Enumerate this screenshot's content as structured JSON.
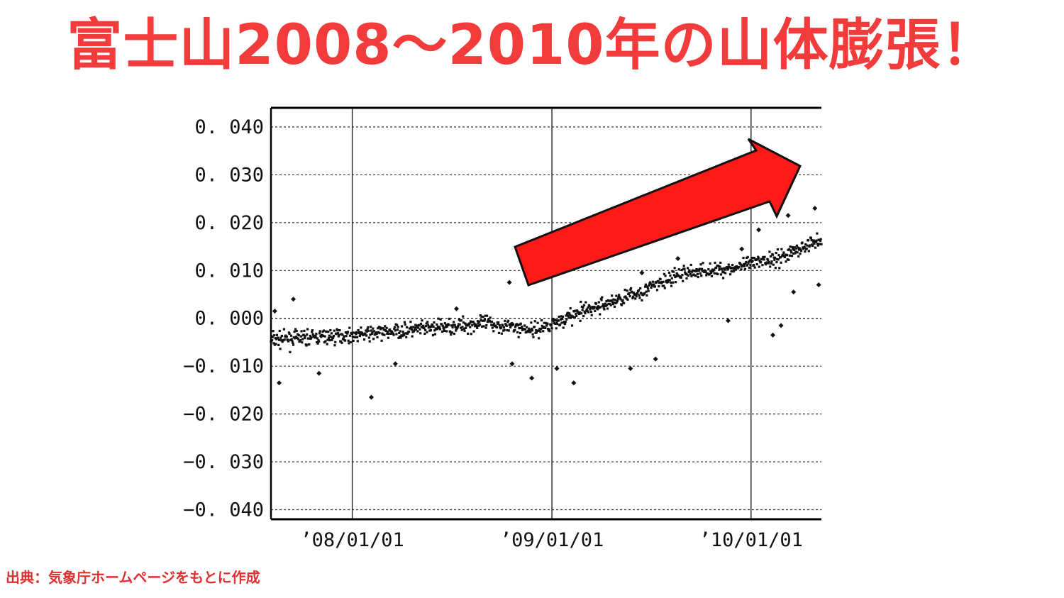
{
  "title": "富士山2008～2010年の山体膨張！",
  "source": "出典：気象庁ホームページをもとに作成",
  "colors": {
    "title": "#f23b3b",
    "arrow_fill": "#ff1a1a",
    "arrow_stroke": "#111111",
    "points": "#111111"
  },
  "chart_data": {
    "type": "scatter",
    "title": "",
    "xlabel": "",
    "ylabel": "",
    "xlim": [
      "2007-08-05",
      "2010-05-10"
    ],
    "ylim": [
      -0.042,
      0.044
    ],
    "y_ticks": [
      {
        "value": 0.04,
        "label": "0. 040"
      },
      {
        "value": 0.03,
        "label": "0. 030"
      },
      {
        "value": 0.02,
        "label": "0. 020"
      },
      {
        "value": 0.01,
        "label": "0. 010"
      },
      {
        "value": 0.0,
        "label": "0. 000"
      },
      {
        "value": -0.01,
        "label": "−0. 010"
      },
      {
        "value": -0.02,
        "label": "−0. 020"
      },
      {
        "value": -0.03,
        "label": "−0. 030"
      },
      {
        "value": -0.04,
        "label": "−0. 040"
      }
    ],
    "x_ticks": [
      {
        "value": "2008-01-01",
        "label": "’08/01/01"
      },
      {
        "value": "2009-01-01",
        "label": "’09/01/01"
      },
      {
        "value": "2010-01-01",
        "label": "’10/01/01"
      }
    ],
    "grid": true,
    "trend": [
      {
        "x": "2007-08-05",
        "y": -0.0045
      },
      {
        "x": "2008-01-01",
        "y": -0.0035
      },
      {
        "x": "2008-06-01",
        "y": -0.002
      },
      {
        "x": "2008-09-01",
        "y": -0.001
      },
      {
        "x": "2008-12-01",
        "y": -0.0025
      },
      {
        "x": "2009-03-01",
        "y": 0.0015
      },
      {
        "x": "2009-06-01",
        "y": 0.005
      },
      {
        "x": "2009-09-01",
        "y": 0.0095
      },
      {
        "x": "2009-12-01",
        "y": 0.0105
      },
      {
        "x": "2010-03-01",
        "y": 0.013
      },
      {
        "x": "2010-05-10",
        "y": 0.0165
      }
    ],
    "series": [
      {
        "points": [
          {
            "x": "2007-08-20",
            "y": -0.0135
          },
          {
            "x": "2007-08-12",
            "y": 0.0015
          },
          {
            "x": "2007-09-15",
            "y": 0.004
          },
          {
            "x": "2007-11-01",
            "y": -0.0115
          },
          {
            "x": "2008-02-05",
            "y": -0.0165
          },
          {
            "x": "2008-03-20",
            "y": -0.0095
          },
          {
            "x": "2008-07-10",
            "y": 0.002
          },
          {
            "x": "2008-10-15",
            "y": 0.0075
          },
          {
            "x": "2008-10-20",
            "y": -0.0095
          },
          {
            "x": "2008-11-25",
            "y": -0.0125
          },
          {
            "x": "2009-01-10",
            "y": -0.0105
          },
          {
            "x": "2009-02-10",
            "y": -0.0135
          },
          {
            "x": "2009-05-25",
            "y": -0.0105
          },
          {
            "x": "2009-06-15",
            "y": 0.0095
          },
          {
            "x": "2009-07-10",
            "y": -0.0085
          },
          {
            "x": "2009-08-20",
            "y": 0.0125
          },
          {
            "x": "2009-11-20",
            "y": -0.0005
          },
          {
            "x": "2009-12-15",
            "y": 0.0145
          },
          {
            "x": "2010-01-15",
            "y": 0.0185
          },
          {
            "x": "2010-02-10",
            "y": -0.0035
          },
          {
            "x": "2010-02-25",
            "y": -0.0015
          },
          {
            "x": "2010-03-10",
            "y": 0.0215
          },
          {
            "x": "2010-03-20",
            "y": 0.0055
          },
          {
            "x": "2010-04-28",
            "y": 0.023
          },
          {
            "x": "2010-05-05",
            "y": 0.007
          }
        ]
      }
    ]
  }
}
